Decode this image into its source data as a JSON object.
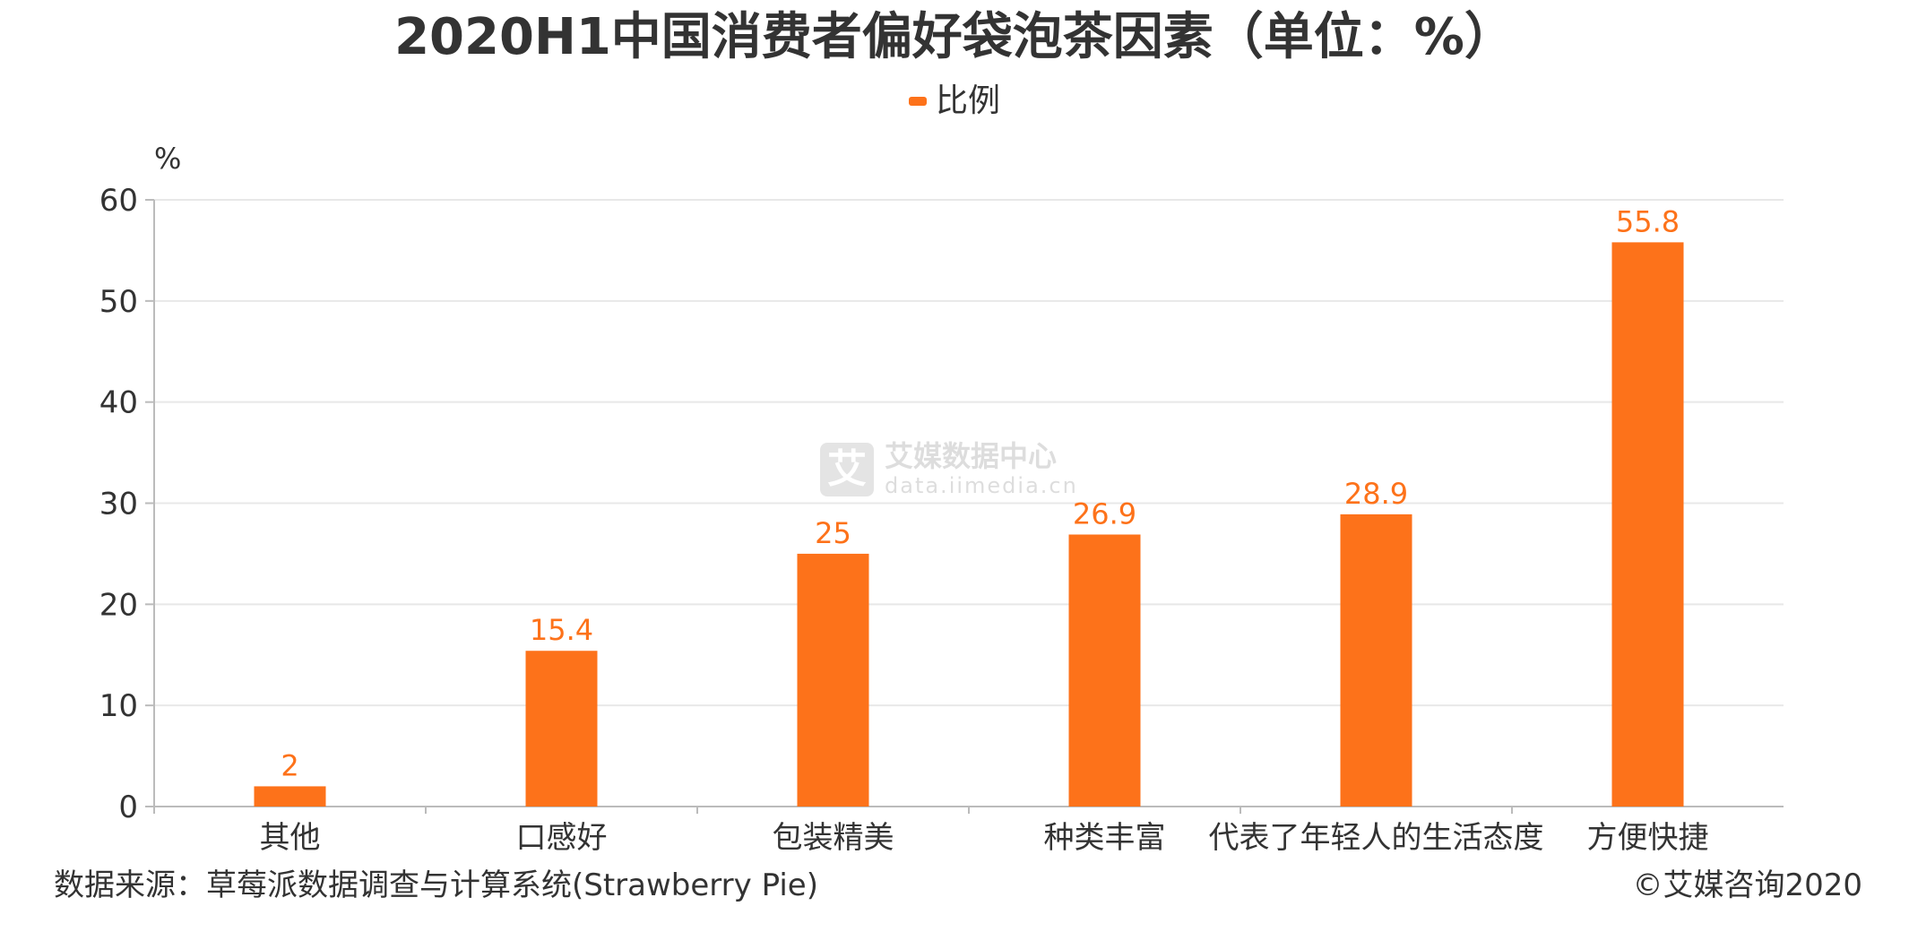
{
  "title": "2020H1中国消费者偏好袋泡茶因素（单位：%）",
  "legend": {
    "label": "比例"
  },
  "colors": {
    "bar": "#fd721a",
    "label": "#fd721a",
    "axis_text": "#333333",
    "grid": "#e8e8e8",
    "axis_line": "#bbbbbb"
  },
  "watermark": {
    "logo_char": "艾",
    "name": "艾媒数据中心",
    "url": "data.iimedia.cn"
  },
  "footer": {
    "source": "数据来源：草莓派数据调查与计算系统(Strawberry Pie)",
    "copyright": "©艾媒咨询2020"
  },
  "chart_data": {
    "type": "bar",
    "title": "2020H1中国消费者偏好袋泡茶因素（单位：%）",
    "ylabel": "%",
    "xlabel": "",
    "ylim": [
      0,
      60
    ],
    "yticks": [
      0,
      10,
      20,
      30,
      40,
      50,
      60
    ],
    "grid": true,
    "legend_position": "top-center",
    "categories": [
      "其他",
      "口感好",
      "包装精美",
      "种类丰富",
      "代表了年轻人的生活态度",
      "方便快捷"
    ],
    "series": [
      {
        "name": "比例",
        "values": [
          2,
          15.4,
          25,
          26.9,
          28.9,
          55.8
        ],
        "labels": [
          "2",
          "15.4",
          "25",
          "26.9",
          "28.9",
          "55.8"
        ]
      }
    ]
  }
}
